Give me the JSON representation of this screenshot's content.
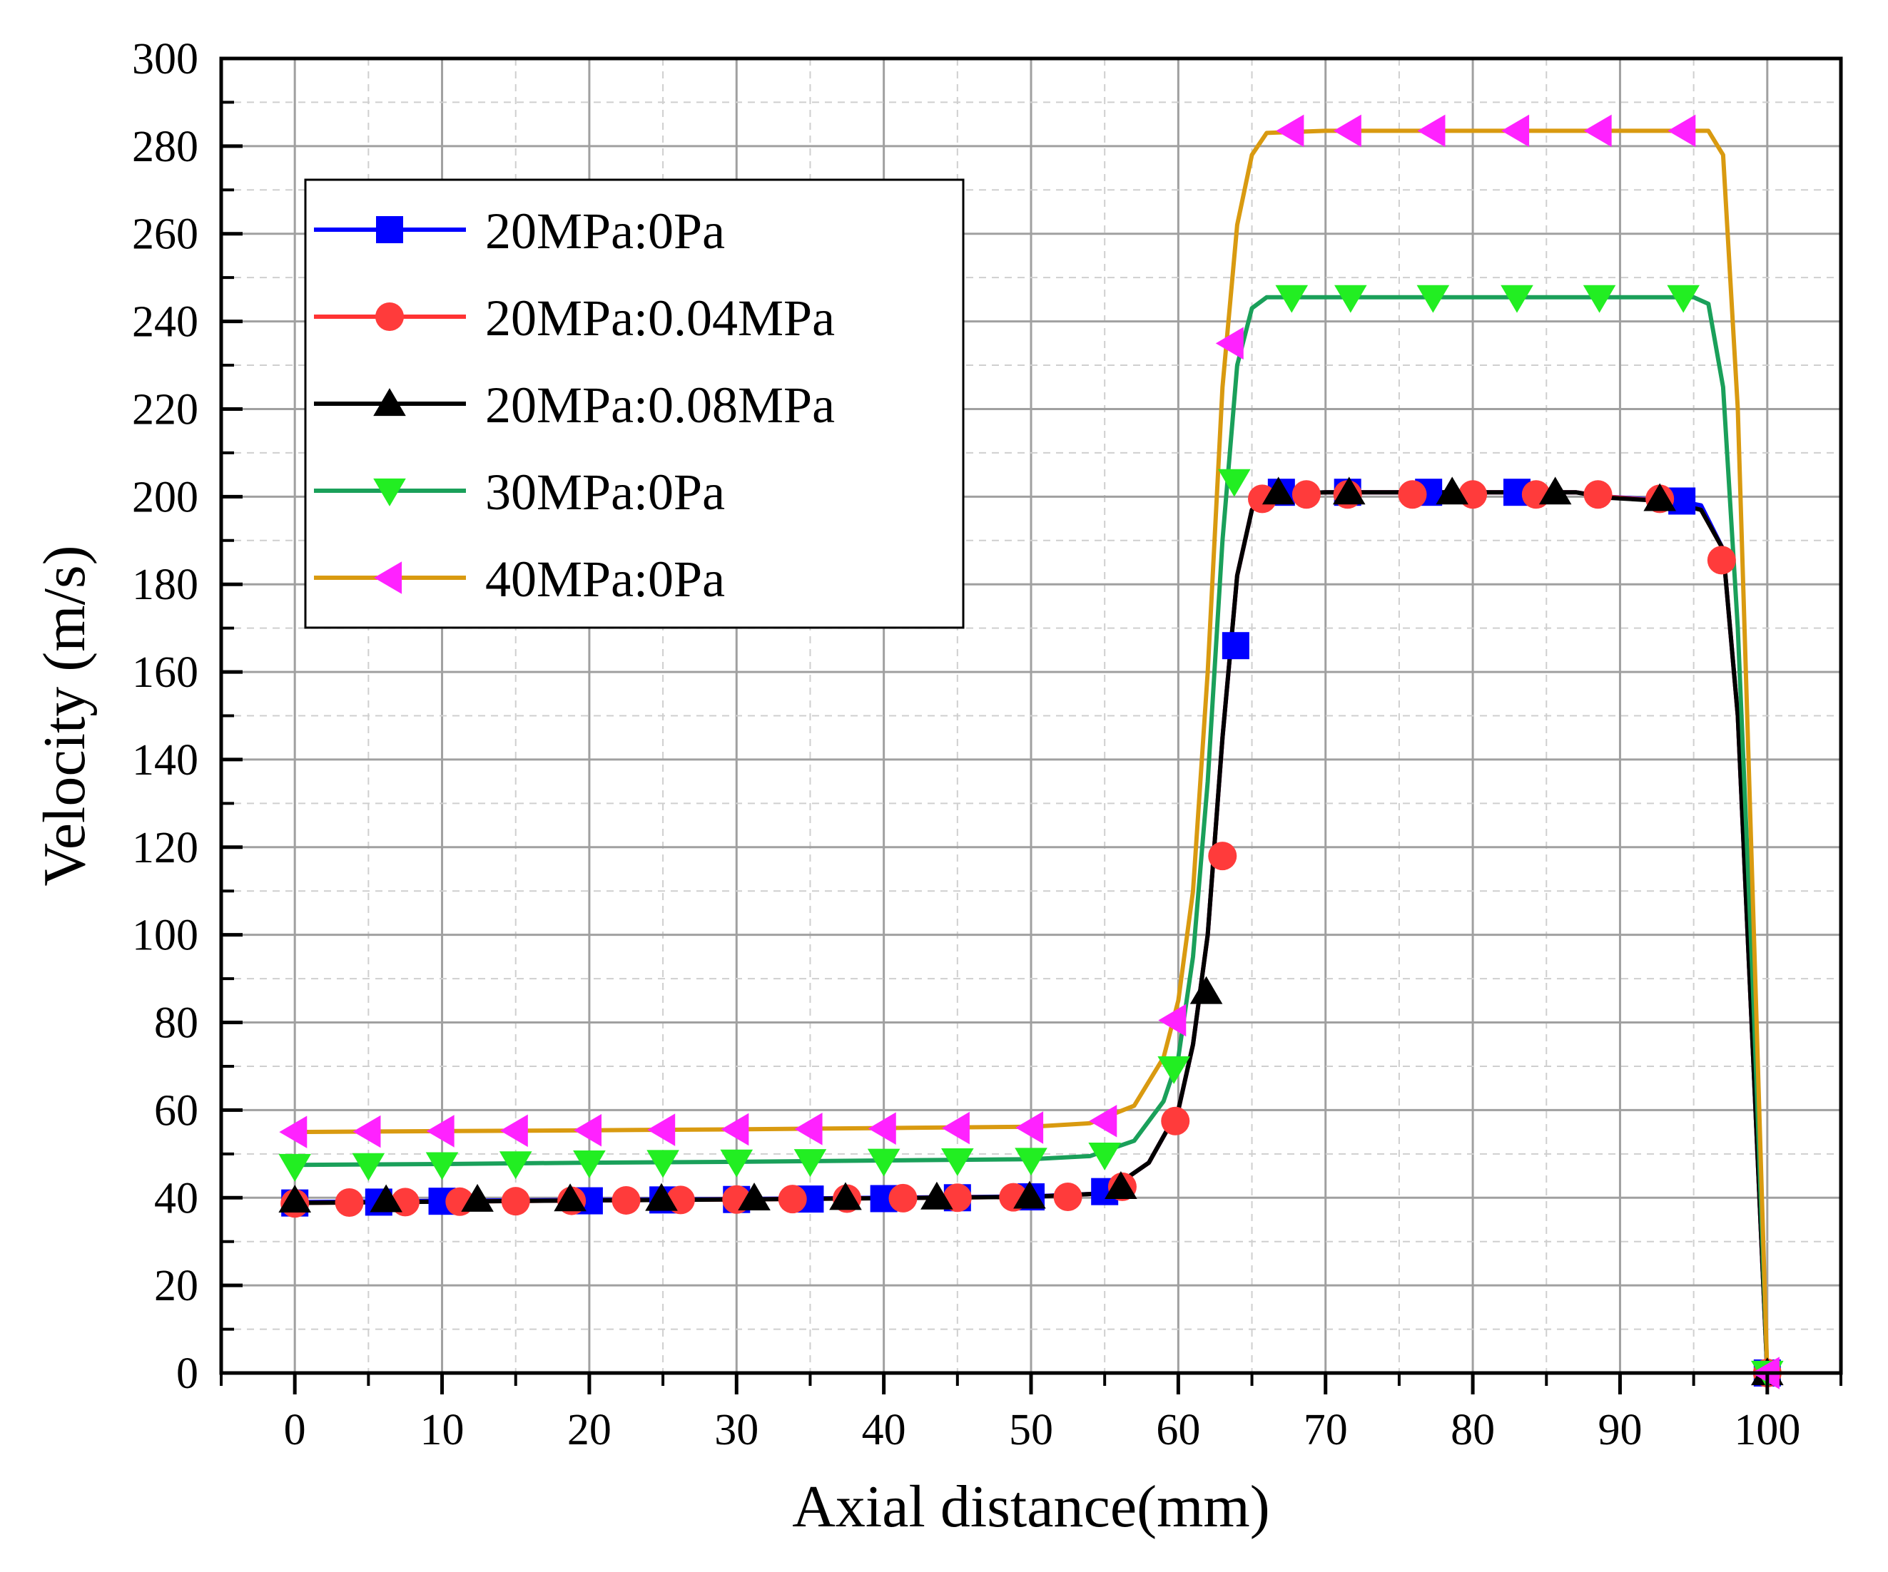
{
  "chart_data": {
    "type": "line",
    "title": "",
    "xlabel": "Axial distance(mm)",
    "ylabel": "Velocity (m/s)",
    "xlim": [
      -5,
      105
    ],
    "ylim": [
      0,
      300
    ],
    "x_ticks": [
      0,
      10,
      20,
      30,
      40,
      50,
      60,
      70,
      80,
      90,
      100
    ],
    "y_ticks": [
      0,
      20,
      40,
      60,
      80,
      100,
      120,
      140,
      160,
      180,
      200,
      220,
      240,
      260,
      280,
      300
    ],
    "grid": true,
    "legend_position": "upper-left",
    "series": [
      {
        "name": "20MPa:0Pa",
        "color": "#0000ff",
        "marker": "square",
        "curve": [
          [
            0,
            39
          ],
          [
            10,
            39.3
          ],
          [
            20,
            39.5
          ],
          [
            30,
            39.7
          ],
          [
            40,
            40
          ],
          [
            50,
            40.3
          ],
          [
            55,
            41
          ],
          [
            58,
            48
          ],
          [
            60,
            60
          ],
          [
            61,
            75
          ],
          [
            62,
            100
          ],
          [
            63,
            145
          ],
          [
            64,
            182
          ],
          [
            65,
            197
          ],
          [
            66,
            200.5
          ],
          [
            70,
            201
          ],
          [
            80,
            201
          ],
          [
            87,
            201
          ],
          [
            89,
            200
          ],
          [
            94,
            199
          ],
          [
            95.5,
            198
          ],
          [
            97,
            188
          ],
          [
            98,
            150
          ],
          [
            99,
            75
          ],
          [
            100,
            0
          ]
        ],
        "markers": [
          [
            0,
            38.8
          ],
          [
            5.7,
            39
          ],
          [
            10,
            39.2
          ],
          [
            20,
            39.3
          ],
          [
            25,
            39.5
          ],
          [
            30,
            39.6
          ],
          [
            35,
            39.7
          ],
          [
            40,
            39.8
          ],
          [
            45,
            40
          ],
          [
            50,
            40.2
          ],
          [
            55,
            41.4
          ],
          [
            63.9,
            166
          ],
          [
            67,
            201
          ],
          [
            71.5,
            201
          ],
          [
            77,
            201
          ],
          [
            83,
            201
          ],
          [
            94.2,
            199
          ],
          [
            100,
            0
          ]
        ]
      },
      {
        "name": "20MPa:0.04MPa",
        "color": "#ff3333",
        "marker": "circle",
        "curve": [
          [
            0,
            38.8
          ],
          [
            10,
            39.1
          ],
          [
            20,
            39.4
          ],
          [
            30,
            39.6
          ],
          [
            40,
            39.9
          ],
          [
            50,
            40.2
          ],
          [
            55,
            41
          ],
          [
            58,
            48
          ],
          [
            60,
            60
          ],
          [
            61,
            75
          ],
          [
            62,
            100
          ],
          [
            63,
            145
          ],
          [
            64,
            182
          ],
          [
            65,
            197
          ],
          [
            66,
            200.5
          ],
          [
            70,
            201
          ],
          [
            80,
            201
          ],
          [
            87,
            201
          ],
          [
            89,
            200
          ],
          [
            93,
            199
          ],
          [
            95.5,
            197
          ],
          [
            97,
            188
          ],
          [
            98,
            150
          ],
          [
            99,
            75
          ],
          [
            100,
            0
          ]
        ],
        "markers": [
          [
            0,
            38.7
          ],
          [
            3.7,
            38.9
          ],
          [
            7.5,
            39
          ],
          [
            11.2,
            39.1
          ],
          [
            15,
            39.2
          ],
          [
            18.8,
            39.3
          ],
          [
            22.5,
            39.4
          ],
          [
            26.2,
            39.5
          ],
          [
            30,
            39.6
          ],
          [
            33.8,
            39.7
          ],
          [
            37.5,
            39.8
          ],
          [
            41.3,
            39.9
          ],
          [
            45,
            40
          ],
          [
            48.8,
            40.1
          ],
          [
            52.5,
            40.2
          ],
          [
            56.2,
            42.5
          ],
          [
            59.8,
            57.5
          ],
          [
            63,
            118
          ],
          [
            65.7,
            199.5
          ],
          [
            68.7,
            200.5
          ],
          [
            71.5,
            200.5
          ],
          [
            75.9,
            200.5
          ],
          [
            80,
            200.5
          ],
          [
            84.3,
            200.5
          ],
          [
            88.5,
            200.5
          ],
          [
            92.7,
            199.5
          ],
          [
            96.9,
            185.5
          ],
          [
            100,
            0
          ]
        ]
      },
      {
        "name": "20MPa:0.08MPa",
        "color": "#000000",
        "marker": "triangle-up",
        "curve": [
          [
            0,
            38.8
          ],
          [
            10,
            39.1
          ],
          [
            20,
            39.4
          ],
          [
            30,
            39.6
          ],
          [
            40,
            39.9
          ],
          [
            50,
            40.2
          ],
          [
            55,
            41
          ],
          [
            58,
            48
          ],
          [
            60,
            60
          ],
          [
            61,
            75
          ],
          [
            62,
            100
          ],
          [
            63,
            145
          ],
          [
            64,
            182
          ],
          [
            65,
            197
          ],
          [
            66,
            200.5
          ],
          [
            70,
            201
          ],
          [
            80,
            201
          ],
          [
            87,
            201
          ],
          [
            89,
            199.8
          ],
          [
            93,
            199
          ],
          [
            95.5,
            197
          ],
          [
            97,
            188
          ],
          [
            98,
            150
          ],
          [
            99,
            75
          ],
          [
            100,
            0
          ]
        ],
        "markers": [
          [
            0,
            39.4
          ],
          [
            6.2,
            39.5
          ],
          [
            12.4,
            39.6
          ],
          [
            18.7,
            39.7
          ],
          [
            24.9,
            39.8
          ],
          [
            31.2,
            39.9
          ],
          [
            37.4,
            40
          ],
          [
            43.6,
            40.1
          ],
          [
            49.9,
            40.3
          ],
          [
            56.1,
            42.5
          ],
          [
            61.9,
            87
          ],
          [
            66.8,
            201
          ],
          [
            71.6,
            201
          ],
          [
            78.6,
            201
          ],
          [
            85.6,
            201
          ],
          [
            92.7,
            199.5
          ],
          [
            100,
            0
          ]
        ]
      },
      {
        "name": "30MPa:0Pa",
        "color": "#1aa05a",
        "marker": "triangle-down",
        "curve": [
          [
            0,
            47.5
          ],
          [
            10,
            47.7
          ],
          [
            20,
            48
          ],
          [
            30,
            48.2
          ],
          [
            40,
            48.5
          ],
          [
            50,
            48.8
          ],
          [
            54,
            49.5
          ],
          [
            57,
            53
          ],
          [
            59,
            62
          ],
          [
            60,
            72
          ],
          [
            61,
            95
          ],
          [
            62,
            135
          ],
          [
            63,
            190
          ],
          [
            64,
            230
          ],
          [
            65,
            243
          ],
          [
            66,
            245.5
          ],
          [
            70,
            245.5
          ],
          [
            80,
            245.5
          ],
          [
            90,
            245.5
          ],
          [
            95,
            245.5
          ],
          [
            96,
            244
          ],
          [
            97,
            225
          ],
          [
            98,
            170
          ],
          [
            99,
            90
          ],
          [
            100,
            0
          ]
        ],
        "markers": [
          [
            0,
            47.2
          ],
          [
            5,
            47.4
          ],
          [
            10,
            47.6
          ],
          [
            15,
            47.8
          ],
          [
            20,
            48
          ],
          [
            25,
            48.1
          ],
          [
            30,
            48.2
          ],
          [
            35,
            48.3
          ],
          [
            40,
            48.4
          ],
          [
            45,
            48.5
          ],
          [
            50,
            48.6
          ],
          [
            55,
            49.8
          ],
          [
            59.7,
            69.5
          ],
          [
            63.8,
            203.5
          ],
          [
            67.7,
            245.5
          ],
          [
            71.7,
            245.5
          ],
          [
            77.3,
            245.5
          ],
          [
            83,
            245.5
          ],
          [
            88.6,
            245.5
          ],
          [
            94.3,
            245.5
          ],
          [
            100,
            0
          ]
        ]
      },
      {
        "name": "40MPa:0Pa",
        "color": "#d99a10",
        "marker": "triangle-left",
        "curve": [
          [
            0,
            55
          ],
          [
            10,
            55.2
          ],
          [
            20,
            55.4
          ],
          [
            30,
            55.6
          ],
          [
            40,
            55.9
          ],
          [
            50,
            56.2
          ],
          [
            54,
            57
          ],
          [
            57,
            61
          ],
          [
            59,
            72
          ],
          [
            60,
            85
          ],
          [
            61,
            110
          ],
          [
            62,
            160
          ],
          [
            63,
            225
          ],
          [
            64,
            262
          ],
          [
            65,
            278
          ],
          [
            66,
            283
          ],
          [
            70,
            283.5
          ],
          [
            80,
            283.5
          ],
          [
            90,
            283.5
          ],
          [
            96,
            283.5
          ],
          [
            97,
            278
          ],
          [
            98,
            220
          ],
          [
            99,
            110
          ],
          [
            100,
            0
          ]
        ],
        "markers": [
          [
            0,
            55
          ],
          [
            5,
            55.1
          ],
          [
            10,
            55.2
          ],
          [
            15,
            55.3
          ],
          [
            20,
            55.4
          ],
          [
            25,
            55.5
          ],
          [
            30,
            55.6
          ],
          [
            35,
            55.7
          ],
          [
            40,
            55.8
          ],
          [
            45,
            55.9
          ],
          [
            50,
            56
          ],
          [
            55,
            57.5
          ],
          [
            59.7,
            80.5
          ],
          [
            63.6,
            235
          ],
          [
            67.7,
            283.5
          ],
          [
            71.6,
            283.5
          ],
          [
            77.3,
            283.5
          ],
          [
            83,
            283.5
          ],
          [
            88.6,
            283.5
          ],
          [
            94.3,
            283.5
          ],
          [
            100,
            0
          ]
        ]
      }
    ]
  }
}
